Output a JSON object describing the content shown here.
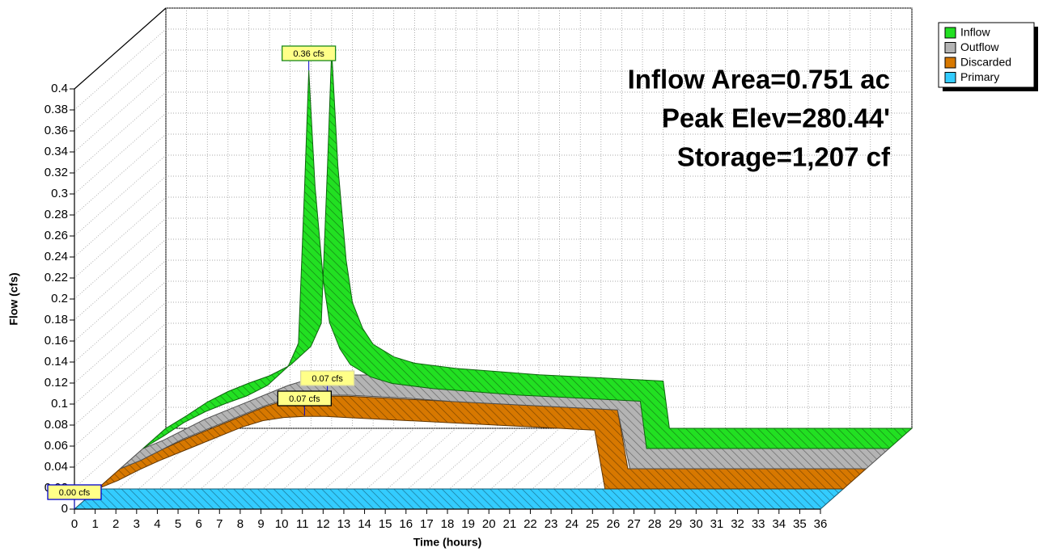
{
  "chart_data": {
    "type": "area3d",
    "xlabel": "Time  (hours)",
    "ylabel": "Flow  (cfs)",
    "xlim": [
      0,
      36
    ],
    "ylim": [
      0,
      0.4
    ],
    "xticks": [
      0,
      1,
      2,
      3,
      4,
      5,
      6,
      7,
      8,
      9,
      10,
      11,
      12,
      13,
      14,
      15,
      16,
      17,
      18,
      19,
      20,
      21,
      22,
      23,
      24,
      25,
      26,
      27,
      28,
      29,
      30,
      31,
      32,
      33,
      34,
      35,
      36
    ],
    "yticks": [
      0,
      0.02,
      0.04,
      0.06,
      0.08,
      0.1,
      0.12,
      0.14,
      0.16,
      0.18,
      0.2,
      0.22,
      0.24,
      0.26,
      0.28,
      0.3,
      0.32,
      0.34,
      0.36,
      0.38,
      0.4
    ],
    "grid": true,
    "legend": "top-right",
    "annotations": [
      "Inflow Area=0.751 ac",
      "Peak Elev=280.44'",
      "Storage=1,207 cf"
    ],
    "series": [
      {
        "name": "Inflow",
        "color": "#22e022",
        "x": [
          0,
          1,
          2,
          3,
          4,
          5,
          6,
          7,
          7.5,
          7.8,
          8,
          8.3,
          8.7,
          9,
          9.5,
          10,
          11,
          12,
          14,
          16,
          18,
          20,
          22,
          24,
          24.3,
          28,
          36
        ],
        "values": [
          0,
          0.012,
          0.025,
          0.035,
          0.043,
          0.05,
          0.06,
          0.078,
          0.1,
          0.25,
          0.36,
          0.25,
          0.16,
          0.12,
          0.095,
          0.08,
          0.068,
          0.062,
          0.057,
          0.054,
          0.051,
          0.049,
          0.047,
          0.045,
          0,
          0,
          0
        ],
        "peak": {
          "x": 8,
          "value": 0.36,
          "label": "0.36 cfs"
        }
      },
      {
        "name": "Outflow",
        "color": "#b4b4b4",
        "x": [
          0,
          1,
          2,
          3,
          4,
          5,
          6,
          7,
          8,
          9,
          10,
          11,
          12,
          14,
          16,
          18,
          20,
          22,
          24,
          24.6,
          25,
          36
        ],
        "values": [
          0,
          0.008,
          0.018,
          0.028,
          0.036,
          0.044,
          0.052,
          0.06,
          0.066,
          0.069,
          0.07,
          0.07,
          0.069,
          0.067,
          0.064,
          0.062,
          0.06,
          0.058,
          0.056,
          0,
          0,
          0
        ],
        "peak": {
          "x": 10,
          "value": 0.07,
          "label": "0.07 cfs"
        }
      },
      {
        "name": "Discarded",
        "color": "#d77800",
        "x": [
          0,
          1,
          2,
          3,
          4,
          5,
          6,
          7,
          8,
          9,
          10,
          11,
          12,
          14,
          16,
          18,
          20,
          22,
          24,
          24.5,
          25,
          36
        ],
        "values": [
          0,
          0.008,
          0.018,
          0.027,
          0.035,
          0.043,
          0.051,
          0.059,
          0.065,
          0.068,
          0.069,
          0.069,
          0.068,
          0.066,
          0.064,
          0.062,
          0.06,
          0.058,
          0.056,
          0,
          0,
          0
        ],
        "peak": {
          "x": 10,
          "value": 0.07,
          "label": "0.07 cfs"
        }
      },
      {
        "name": "Primary",
        "color": "#33ccff",
        "x": [
          0,
          36
        ],
        "values": [
          0,
          0
        ],
        "peak": {
          "x": 0,
          "value": 0,
          "label": "0.00 cfs"
        }
      }
    ]
  }
}
